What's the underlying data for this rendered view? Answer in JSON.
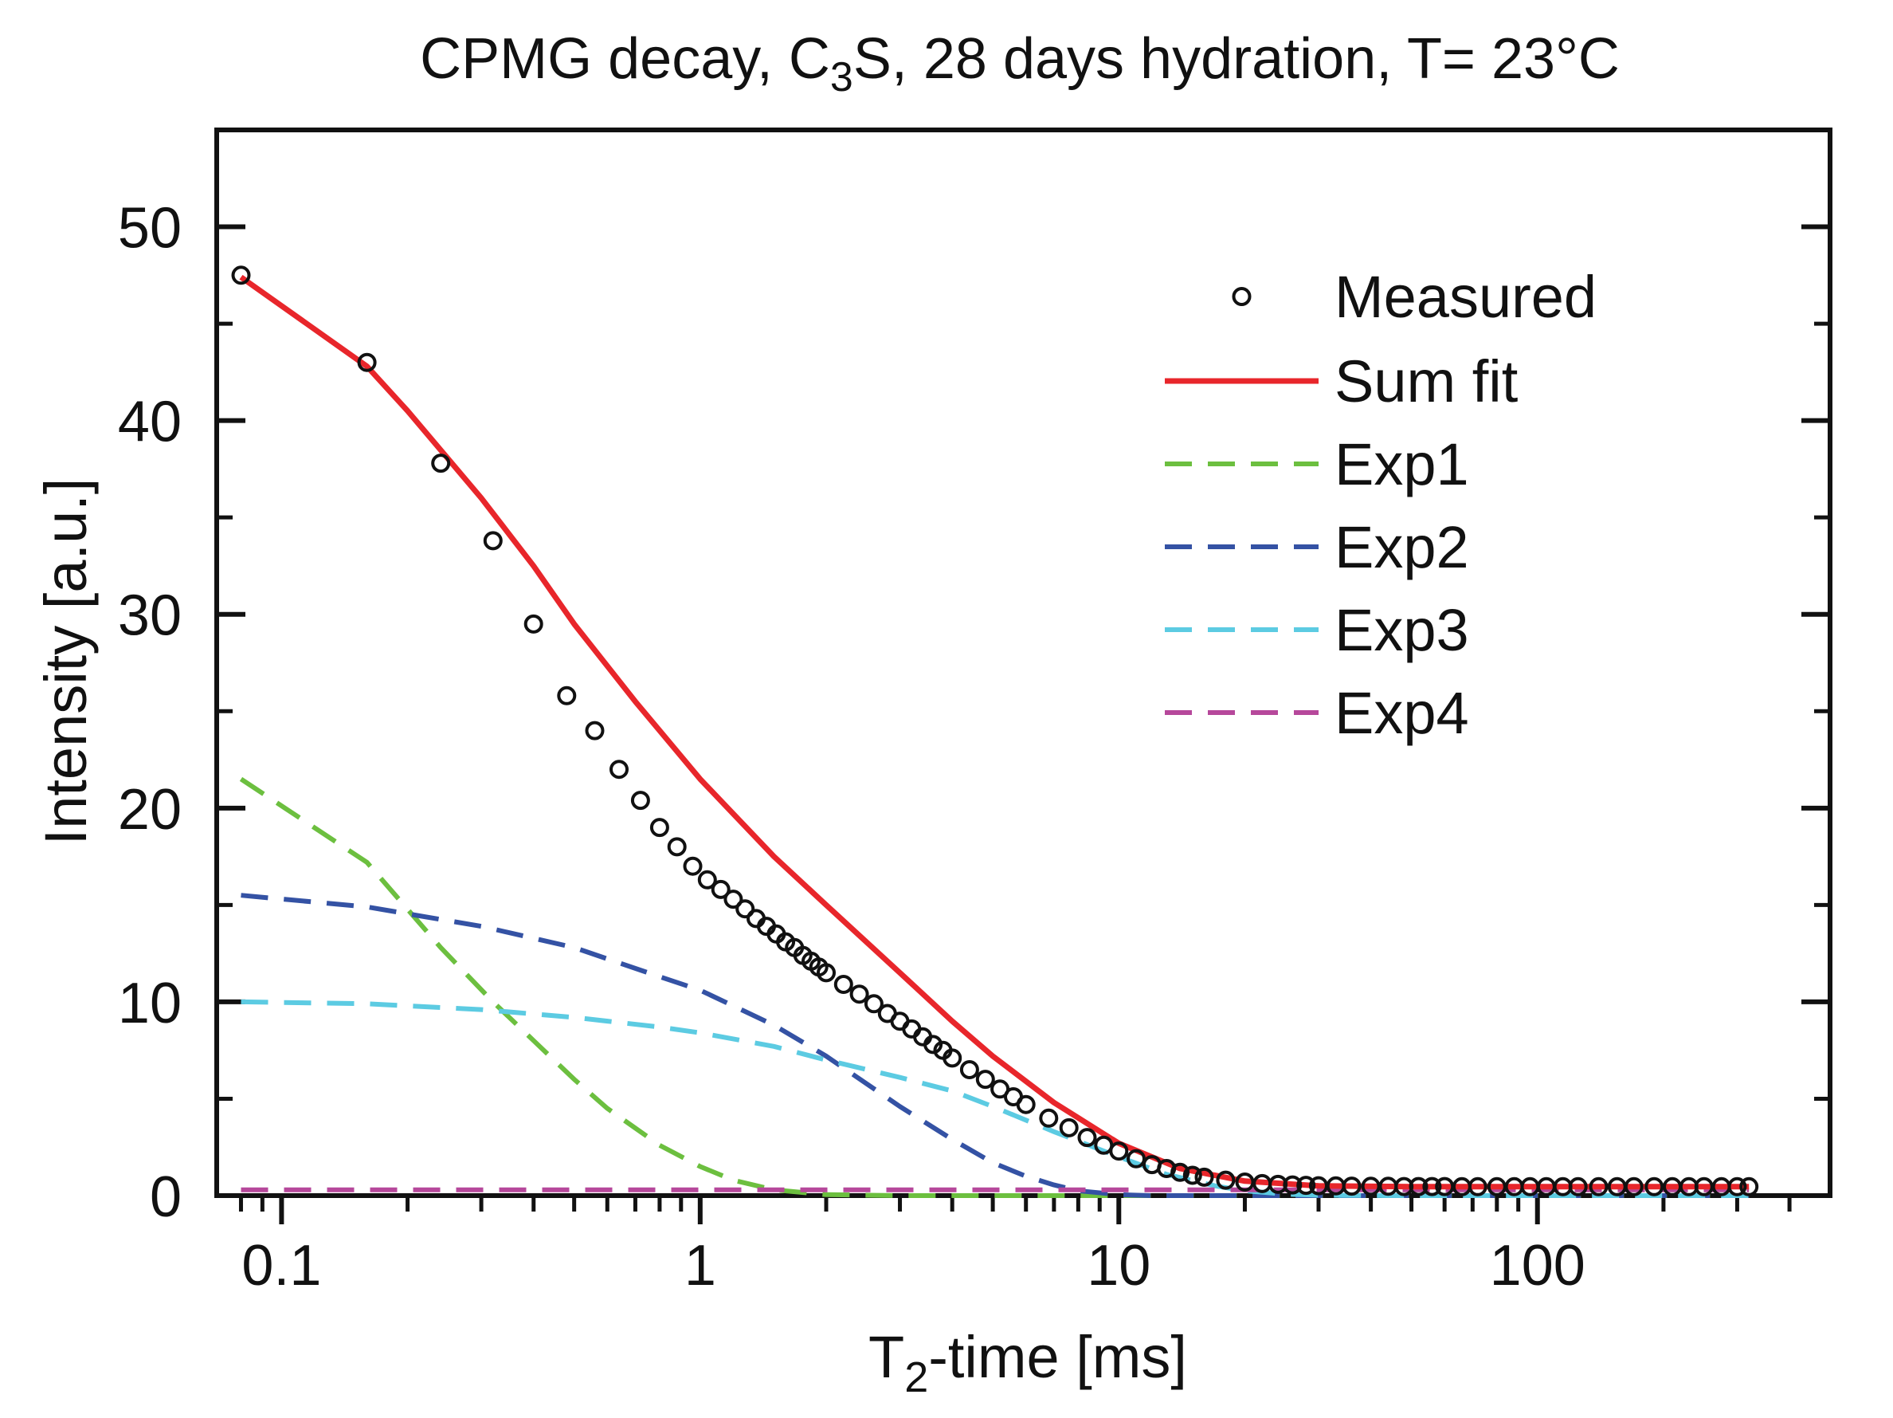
{
  "chart_data": {
    "type": "scatter",
    "title": {
      "prefix": "CPMG decay, C",
      "sub": "3",
      "suffix": "S, 28 days hydration, T= 23°C"
    },
    "xlabel": {
      "prefix": "T",
      "sub": "2",
      "suffix": "-time [ms]"
    },
    "ylabel": "Intensity [a.u.]",
    "xscale": "log",
    "xlim": [
      0.07,
      500
    ],
    "ylim": [
      0,
      55
    ],
    "xticks": [
      0.1,
      1,
      10,
      100
    ],
    "xtick_labels": [
      "0.1",
      "1",
      "10",
      "100"
    ],
    "yticks": [
      0,
      10,
      20,
      30,
      40,
      50
    ],
    "ytick_labels": [
      "0",
      "10",
      "20",
      "30",
      "40",
      "50"
    ],
    "grid": false,
    "legend_position": "top-right",
    "series": [
      {
        "name": "Measured",
        "kind": "markers",
        "color": "#111111",
        "x": [
          0.08,
          0.16,
          0.24,
          0.32,
          0.4,
          0.48,
          0.56,
          0.64,
          0.72,
          0.8,
          0.88,
          0.96,
          1.04,
          1.12,
          1.2,
          1.28,
          1.36,
          1.44,
          1.52,
          1.6,
          1.68,
          1.76,
          1.84,
          1.92,
          2.0,
          2.2,
          2.4,
          2.6,
          2.8,
          3.0,
          3.2,
          3.4,
          3.6,
          3.8,
          4.0,
          4.4,
          4.8,
          5.2,
          5.6,
          6.0,
          6.8,
          7.6,
          8.4,
          9.2,
          10,
          11,
          12,
          13,
          14,
          15,
          16,
          18,
          20,
          22,
          24,
          26,
          28,
          30,
          33,
          36,
          40,
          44,
          48,
          52,
          56,
          60,
          66,
          72,
          80,
          88,
          96,
          105,
          115,
          125,
          140,
          155,
          170,
          190,
          210,
          230,
          250,
          275,
          300,
          320
        ],
        "y": [
          47.5,
          43.0,
          37.8,
          33.8,
          29.5,
          25.8,
          24.0,
          22.0,
          20.4,
          19.0,
          18.0,
          17.0,
          16.3,
          15.8,
          15.3,
          14.8,
          14.3,
          13.9,
          13.5,
          13.1,
          12.8,
          12.4,
          12.1,
          11.8,
          11.5,
          10.9,
          10.4,
          9.9,
          9.4,
          9.0,
          8.6,
          8.2,
          7.8,
          7.5,
          7.1,
          6.5,
          6.0,
          5.5,
          5.1,
          4.7,
          4.0,
          3.5,
          3.0,
          2.6,
          2.3,
          1.9,
          1.6,
          1.4,
          1.2,
          1.05,
          0.95,
          0.8,
          0.7,
          0.62,
          0.58,
          0.55,
          0.53,
          0.51,
          0.5,
          0.49,
          0.48,
          0.48,
          0.47,
          0.47,
          0.47,
          0.47,
          0.46,
          0.46,
          0.46,
          0.46,
          0.46,
          0.46,
          0.46,
          0.46,
          0.46,
          0.46,
          0.46,
          0.46,
          0.46,
          0.46,
          0.46,
          0.46,
          0.46,
          0.46
        ]
      },
      {
        "name": "Sum fit",
        "kind": "line",
        "dash": "solid",
        "color": "#e8262b",
        "x": [
          0.08,
          0.16,
          0.2,
          0.3,
          0.4,
          0.5,
          0.7,
          1.0,
          1.5,
          2.0,
          3.0,
          4.0,
          5.0,
          7.0,
          10,
          14,
          20,
          30,
          50,
          100,
          200,
          320
        ],
        "y": [
          47.4,
          42.8,
          40.5,
          36.0,
          32.5,
          29.5,
          25.5,
          21.5,
          17.5,
          15.0,
          11.5,
          9.0,
          7.2,
          4.8,
          2.7,
          1.4,
          0.75,
          0.5,
          0.46,
          0.46,
          0.46,
          0.46
        ]
      },
      {
        "name": "Exp1",
        "kind": "line",
        "dash": "dashed",
        "color": "#6cbf3f",
        "x": [
          0.08,
          0.16,
          0.24,
          0.32,
          0.4,
          0.5,
          0.6,
          0.8,
          1.0,
          1.2,
          1.5,
          2.0,
          3.0,
          5.0,
          10,
          30,
          100,
          320
        ],
        "y": [
          21.5,
          17.2,
          12.8,
          10.0,
          8.0,
          6.0,
          4.5,
          2.6,
          1.5,
          0.8,
          0.3,
          0.05,
          0,
          0,
          0,
          0,
          0,
          0
        ]
      },
      {
        "name": "Exp2",
        "kind": "line",
        "dash": "dashed",
        "color": "#3452a4",
        "x": [
          0.08,
          0.16,
          0.3,
          0.5,
          0.8,
          1.0,
          1.5,
          2.0,
          3.0,
          4.0,
          5.0,
          6.0,
          7.0,
          8.0,
          10,
          12,
          15,
          20,
          30,
          100,
          320
        ],
        "y": [
          15.5,
          14.9,
          13.9,
          12.8,
          11.3,
          10.6,
          8.8,
          7.2,
          4.6,
          2.9,
          1.7,
          1.0,
          0.55,
          0.25,
          0.05,
          0,
          0,
          0,
          0,
          0,
          0
        ]
      },
      {
        "name": "Exp3",
        "kind": "line",
        "dash": "dashed",
        "color": "#5ccbe2",
        "x": [
          0.08,
          0.16,
          0.3,
          0.5,
          0.8,
          1.0,
          1.5,
          2.0,
          3.0,
          4.0,
          5.0,
          7.0,
          10,
          13,
          17,
          20,
          25,
          30,
          50,
          100,
          320
        ],
        "y": [
          10.0,
          9.9,
          9.6,
          9.2,
          8.7,
          8.4,
          7.7,
          7.0,
          6.1,
          5.4,
          4.6,
          3.3,
          2.0,
          1.1,
          0.5,
          0.25,
          0.08,
          0.02,
          0,
          0,
          0
        ]
      },
      {
        "name": "Exp4",
        "kind": "line",
        "dash": "dashed",
        "color": "#b6489b",
        "x": [
          0.08,
          1,
          10,
          100,
          320
        ],
        "y": [
          0.3,
          0.3,
          0.3,
          0.3,
          0.3
        ]
      }
    ]
  }
}
